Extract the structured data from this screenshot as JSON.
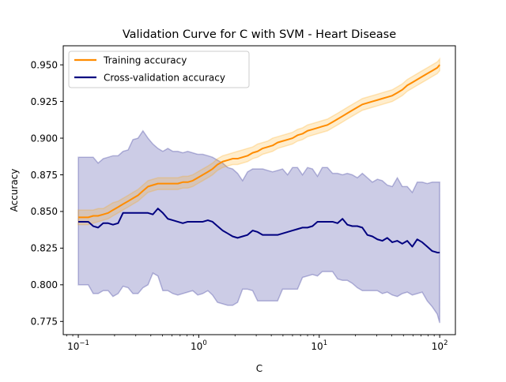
{
  "chart_data": {
    "type": "line",
    "title": "Validation Curve for C with SVM - Heart Disease",
    "xlabel": "C",
    "ylabel": "Accuracy",
    "xscale": "log",
    "xlim": [
      0.075,
      135
    ],
    "ylim": [
      0.766,
      0.963
    ],
    "x_ticks": [
      {
        "value": 0.1,
        "base": "10",
        "exp": "−1"
      },
      {
        "value": 1,
        "base": "10",
        "exp": "0"
      },
      {
        "value": 10,
        "base": "10",
        "exp": "1"
      },
      {
        "value": 100,
        "base": "10",
        "exp": "2"
      }
    ],
    "y_ticks": [
      0.775,
      0.8,
      0.825,
      0.85,
      0.875,
      0.9,
      0.925,
      0.95
    ],
    "y_tick_labels": [
      "0.775",
      "0.800",
      "0.825",
      "0.850",
      "0.875",
      "0.900",
      "0.925",
      "0.950"
    ],
    "legend_position": "top-left",
    "grid": false,
    "series": [
      {
        "name": "Training accuracy",
        "color": "#ff8c00",
        "band_color": "#ffa500",
        "x": [
          0.1,
          0.11,
          0.121,
          0.133,
          0.146,
          0.161,
          0.177,
          0.194,
          0.214,
          0.235,
          0.259,
          0.284,
          0.313,
          0.344,
          0.379,
          0.416,
          0.458,
          0.503,
          0.554,
          0.609,
          0.67,
          0.737,
          0.81,
          0.891,
          0.98,
          1.08,
          1.19,
          1.3,
          1.43,
          1.58,
          1.74,
          1.91,
          2.1,
          2.31,
          2.54,
          2.8,
          3.08,
          3.39,
          3.73,
          4.1,
          4.51,
          4.96,
          5.46,
          6.0,
          6.6,
          7.26,
          7.99,
          8.79,
          9.67,
          10.6,
          11.7,
          12.9,
          14.2,
          15.6,
          17.1,
          18.8,
          20.7,
          22.8,
          25.1,
          27.6,
          30.4,
          33.4,
          36.7,
          40.4,
          44.5,
          48.9,
          53.8,
          59.2,
          65.1,
          71.6,
          78.8,
          86.7,
          95.4,
          100
        ],
        "mean": [
          0.846,
          0.846,
          0.846,
          0.847,
          0.847,
          0.848,
          0.849,
          0.851,
          0.853,
          0.855,
          0.857,
          0.859,
          0.861,
          0.864,
          0.867,
          0.868,
          0.869,
          0.869,
          0.869,
          0.869,
          0.869,
          0.87,
          0.87,
          0.871,
          0.873,
          0.875,
          0.877,
          0.879,
          0.882,
          0.884,
          0.885,
          0.886,
          0.886,
          0.887,
          0.888,
          0.89,
          0.891,
          0.893,
          0.894,
          0.895,
          0.897,
          0.898,
          0.899,
          0.9,
          0.902,
          0.903,
          0.905,
          0.906,
          0.907,
          0.908,
          0.909,
          0.911,
          0.913,
          0.915,
          0.917,
          0.919,
          0.921,
          0.923,
          0.924,
          0.925,
          0.926,
          0.927,
          0.928,
          0.929,
          0.931,
          0.933,
          0.936,
          0.938,
          0.94,
          0.942,
          0.944,
          0.946,
          0.948,
          0.95
        ],
        "upper": [
          0.851,
          0.851,
          0.851,
          0.851,
          0.852,
          0.852,
          0.854,
          0.856,
          0.857,
          0.859,
          0.861,
          0.863,
          0.865,
          0.868,
          0.871,
          0.872,
          0.873,
          0.873,
          0.873,
          0.873,
          0.873,
          0.874,
          0.874,
          0.875,
          0.877,
          0.879,
          0.881,
          0.883,
          0.886,
          0.888,
          0.889,
          0.89,
          0.891,
          0.892,
          0.893,
          0.894,
          0.896,
          0.897,
          0.898,
          0.9,
          0.901,
          0.902,
          0.903,
          0.904,
          0.906,
          0.907,
          0.909,
          0.91,
          0.911,
          0.912,
          0.913,
          0.915,
          0.917,
          0.919,
          0.921,
          0.923,
          0.925,
          0.927,
          0.928,
          0.929,
          0.93,
          0.931,
          0.932,
          0.933,
          0.935,
          0.937,
          0.94,
          0.942,
          0.944,
          0.946,
          0.948,
          0.95,
          0.952,
          0.954
        ],
        "lower": [
          0.841,
          0.841,
          0.841,
          0.842,
          0.843,
          0.844,
          0.845,
          0.847,
          0.849,
          0.851,
          0.853,
          0.855,
          0.857,
          0.86,
          0.863,
          0.864,
          0.865,
          0.865,
          0.865,
          0.865,
          0.865,
          0.866,
          0.866,
          0.867,
          0.869,
          0.871,
          0.873,
          0.875,
          0.878,
          0.88,
          0.881,
          0.882,
          0.882,
          0.883,
          0.884,
          0.886,
          0.887,
          0.889,
          0.89,
          0.891,
          0.893,
          0.894,
          0.895,
          0.896,
          0.898,
          0.899,
          0.901,
          0.902,
          0.903,
          0.904,
          0.905,
          0.907,
          0.909,
          0.911,
          0.913,
          0.915,
          0.917,
          0.919,
          0.92,
          0.921,
          0.922,
          0.923,
          0.924,
          0.925,
          0.927,
          0.929,
          0.932,
          0.934,
          0.936,
          0.938,
          0.94,
          0.942,
          0.944,
          0.946
        ]
      },
      {
        "name": "Cross-validation accuracy",
        "color": "#000080",
        "band_color": "#000080",
        "x": [
          0.1,
          0.11,
          0.121,
          0.133,
          0.146,
          0.161,
          0.177,
          0.194,
          0.214,
          0.235,
          0.259,
          0.284,
          0.313,
          0.344,
          0.379,
          0.416,
          0.458,
          0.503,
          0.554,
          0.609,
          0.67,
          0.737,
          0.81,
          0.891,
          0.98,
          1.08,
          1.19,
          1.3,
          1.43,
          1.58,
          1.74,
          1.91,
          2.1,
          2.31,
          2.54,
          2.8,
          3.08,
          3.39,
          3.73,
          4.1,
          4.51,
          4.96,
          5.46,
          6.0,
          6.6,
          7.26,
          7.99,
          8.79,
          9.67,
          10.6,
          11.7,
          12.9,
          14.2,
          15.6,
          17.1,
          18.8,
          20.7,
          22.8,
          25.1,
          27.6,
          30.4,
          33.4,
          36.7,
          40.4,
          44.5,
          48.9,
          53.8,
          59.2,
          65.1,
          71.6,
          78.8,
          86.7,
          95.4,
          100
        ],
        "mean": [
          0.843,
          0.843,
          0.843,
          0.84,
          0.839,
          0.842,
          0.842,
          0.841,
          0.842,
          0.849,
          0.849,
          0.849,
          0.849,
          0.849,
          0.849,
          0.848,
          0.852,
          0.849,
          0.845,
          0.844,
          0.843,
          0.842,
          0.843,
          0.843,
          0.843,
          0.843,
          0.844,
          0.843,
          0.84,
          0.837,
          0.835,
          0.833,
          0.832,
          0.833,
          0.834,
          0.837,
          0.836,
          0.834,
          0.834,
          0.834,
          0.834,
          0.835,
          0.836,
          0.837,
          0.838,
          0.839,
          0.839,
          0.84,
          0.843,
          0.843,
          0.843,
          0.843,
          0.842,
          0.845,
          0.841,
          0.84,
          0.84,
          0.839,
          0.834,
          0.833,
          0.831,
          0.83,
          0.832,
          0.829,
          0.83,
          0.828,
          0.83,
          0.826,
          0.831,
          0.829,
          0.826,
          0.823,
          0.822,
          0.822
        ],
        "upper": [
          0.887,
          0.887,
          0.887,
          0.887,
          0.883,
          0.886,
          0.887,
          0.888,
          0.888,
          0.891,
          0.892,
          0.899,
          0.9,
          0.905,
          0.9,
          0.896,
          0.893,
          0.891,
          0.893,
          0.891,
          0.891,
          0.89,
          0.891,
          0.89,
          0.889,
          0.889,
          0.888,
          0.887,
          0.885,
          0.883,
          0.88,
          0.879,
          0.876,
          0.871,
          0.877,
          0.879,
          0.879,
          0.879,
          0.878,
          0.877,
          0.878,
          0.879,
          0.875,
          0.88,
          0.88,
          0.875,
          0.88,
          0.879,
          0.874,
          0.88,
          0.88,
          0.876,
          0.876,
          0.875,
          0.876,
          0.875,
          0.873,
          0.876,
          0.873,
          0.87,
          0.872,
          0.871,
          0.868,
          0.867,
          0.873,
          0.867,
          0.867,
          0.863,
          0.87,
          0.87,
          0.869,
          0.87,
          0.87,
          0.87
        ],
        "lower": [
          0.8,
          0.8,
          0.8,
          0.794,
          0.794,
          0.796,
          0.796,
          0.792,
          0.794,
          0.799,
          0.798,
          0.794,
          0.794,
          0.798,
          0.8,
          0.808,
          0.806,
          0.796,
          0.796,
          0.794,
          0.793,
          0.794,
          0.795,
          0.796,
          0.793,
          0.794,
          0.796,
          0.793,
          0.788,
          0.787,
          0.786,
          0.786,
          0.788,
          0.797,
          0.797,
          0.796,
          0.789,
          0.789,
          0.789,
          0.789,
          0.789,
          0.797,
          0.797,
          0.797,
          0.797,
          0.805,
          0.806,
          0.807,
          0.806,
          0.809,
          0.809,
          0.809,
          0.804,
          0.803,
          0.803,
          0.801,
          0.798,
          0.796,
          0.796,
          0.796,
          0.796,
          0.794,
          0.795,
          0.793,
          0.792,
          0.794,
          0.795,
          0.793,
          0.794,
          0.795,
          0.789,
          0.785,
          0.78,
          0.774
        ]
      }
    ]
  }
}
